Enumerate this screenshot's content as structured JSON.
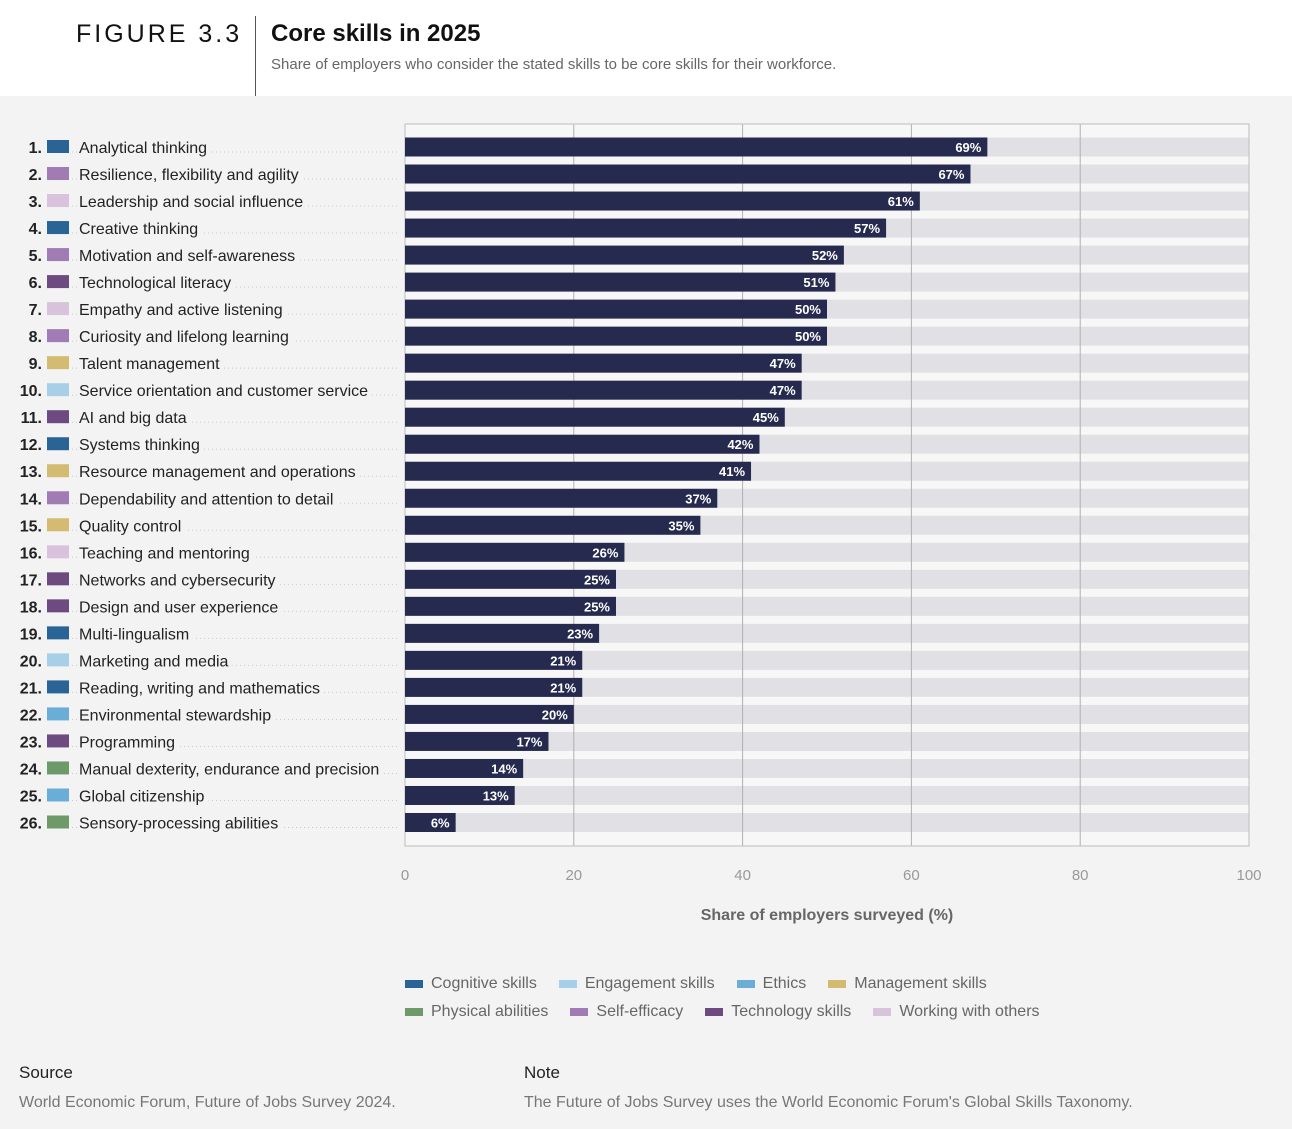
{
  "figure_label": "FIGURE 3.3",
  "chart_data": {
    "type": "bar",
    "orientation": "horizontal",
    "title": "Core skills in 2025",
    "subtitle": "Share of employers who consider the stated skills to be core skills for their workforce.",
    "xlabel": "Share of employers surveyed (%)",
    "ylabel": "",
    "xlim": [
      0,
      100
    ],
    "xticks": [
      0,
      20,
      40,
      60,
      80,
      100
    ],
    "grid": true,
    "categories": [
      "Analytical thinking",
      "Resilience, flexibility and agility",
      "Leadership and social influence",
      "Creative thinking",
      "Motivation and self-awareness",
      "Technological literacy",
      "Empathy and active listening",
      "Curiosity and lifelong learning",
      "Talent management",
      "Service orientation and customer service",
      "AI and big data",
      "Systems thinking",
      "Resource management and operations",
      "Dependability and attention to detail",
      "Quality control",
      "Teaching and mentoring",
      "Networks and cybersecurity",
      "Design and user experience",
      "Multi-lingualism",
      "Marketing and media",
      "Reading, writing and mathematics",
      "Environmental stewardship",
      "Programming",
      "Manual dexterity, endurance and precision",
      "Global citizenship",
      "Sensory-processing abilities"
    ],
    "values": [
      69,
      67,
      61,
      57,
      52,
      51,
      50,
      50,
      47,
      47,
      45,
      42,
      41,
      37,
      35,
      26,
      25,
      25,
      23,
      21,
      21,
      20,
      17,
      14,
      13,
      6
    ],
    "value_labels": [
      "69%",
      "67%",
      "61%",
      "57%",
      "52%",
      "51%",
      "50%",
      "50%",
      "47%",
      "47%",
      "45%",
      "42%",
      "41%",
      "37%",
      "35%",
      "26%",
      "25%",
      "25%",
      "23%",
      "21%",
      "21%",
      "20%",
      "17%",
      "14%",
      "13%",
      "6%"
    ],
    "ranks": [
      "1.",
      "2.",
      "3.",
      "4.",
      "5.",
      "6.",
      "7.",
      "8.",
      "9.",
      "10.",
      "11.",
      "12.",
      "13.",
      "14.",
      "15.",
      "16.",
      "17.",
      "18.",
      "19.",
      "20.",
      "21.",
      "22.",
      "23.",
      "24.",
      "25.",
      "26."
    ],
    "skill_groups": [
      "Cognitive skills",
      "Self-efficacy",
      "Working with others",
      "Cognitive skills",
      "Self-efficacy",
      "Technology skills",
      "Working with others",
      "Self-efficacy",
      "Management skills",
      "Engagement skills",
      "Technology skills",
      "Cognitive skills",
      "Management skills",
      "Self-efficacy",
      "Management skills",
      "Working with others",
      "Technology skills",
      "Technology skills",
      "Cognitive skills",
      "Engagement skills",
      "Cognitive skills",
      "Ethics",
      "Technology skills",
      "Physical abilities",
      "Ethics",
      "Physical abilities"
    ],
    "legend": [
      {
        "name": "Cognitive skills",
        "color": "#2a6496"
      },
      {
        "name": "Engagement skills",
        "color": "#a8cfe8"
      },
      {
        "name": "Ethics",
        "color": "#6aaed8"
      },
      {
        "name": "Management skills",
        "color": "#d4bb72"
      },
      {
        "name": "Physical abilities",
        "color": "#6e9a6a"
      },
      {
        "name": "Self-efficacy",
        "color": "#a07bb4"
      },
      {
        "name": "Technology skills",
        "color": "#6d4b80"
      },
      {
        "name": "Working with others",
        "color": "#d8c2dc"
      }
    ],
    "bar_color": "#262a4f",
    "track_color": "#e1e1e5"
  },
  "footer": {
    "source_heading": "Source",
    "source_text": "World Economic Forum, Future of Jobs Survey 2024.",
    "note_heading": "Note",
    "note_text": "The Future of Jobs Survey uses the World Economic Forum's Global Skills Taxonomy."
  }
}
